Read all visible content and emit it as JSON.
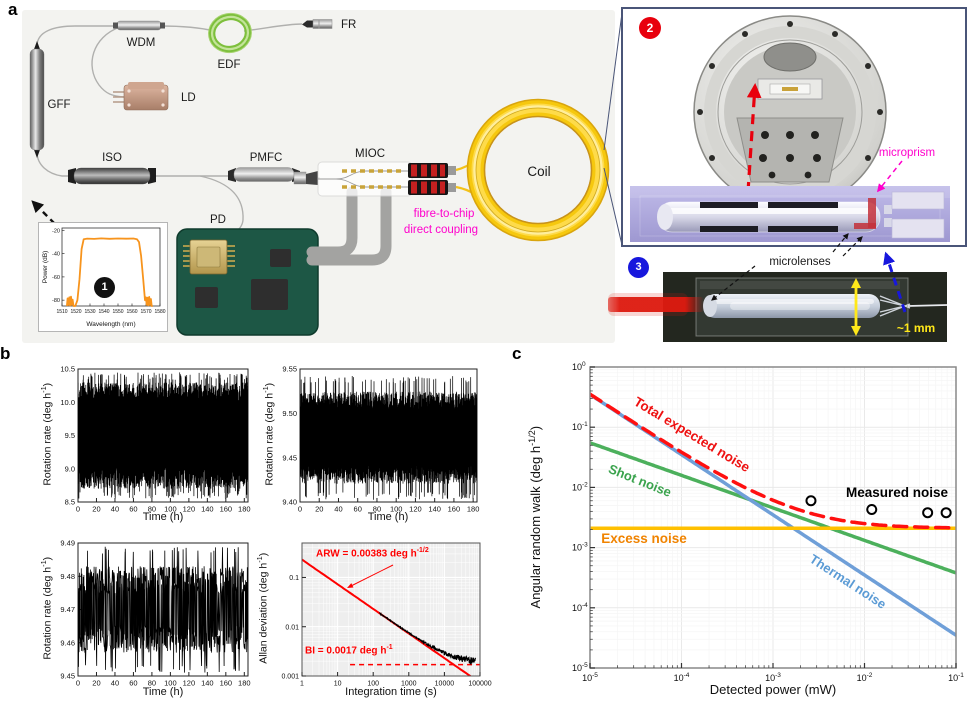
{
  "panel_letters": {
    "a": "a",
    "b": "b",
    "c": "c"
  },
  "schematic": {
    "labels": {
      "gff": "GFF",
      "wdm": "WDM",
      "edf": "EDF",
      "fr": "FR",
      "ld": "LD",
      "iso": "ISO",
      "pmfc": "PMFC",
      "mioc": "MIOC",
      "pd": "PD",
      "coil": "Coil"
    },
    "coupling_note_line1": "fibre-to-chip",
    "coupling_note_line2": "direct coupling",
    "badge1": "1",
    "badge2": "2",
    "badge3": "3",
    "microprism_label": "microprism",
    "microlenses_label": "microlenses",
    "scale_label": "~1 mm",
    "colors": {
      "magenta_note": "#ff00cc",
      "scale_yellow": "#ffe81a",
      "badge1_bg": "#111111",
      "badge2_bg": "#e8000d",
      "badge3_bg": "#1717dd"
    }
  },
  "chart_data": {
    "spectrum": {
      "type": "line",
      "xlabel": "Wavelength (nm)",
      "ylabel": "Power (dB)",
      "xlim": [
        1510,
        1580
      ],
      "ylim": [
        -85,
        -18
      ],
      "xticks": [
        1510,
        1520,
        1530,
        1540,
        1550,
        1560,
        1570,
        1580
      ],
      "yticks": [
        -20,
        -40,
        -60,
        -80
      ],
      "color": "#f7941d",
      "points": [
        [
          1513.5,
          -85
        ],
        [
          1514,
          -78.5
        ],
        [
          1514.6,
          -84
        ],
        [
          1515.2,
          -77.5
        ],
        [
          1515.8,
          -84.5
        ],
        [
          1516.4,
          -77
        ],
        [
          1517,
          -84
        ],
        [
          1517.6,
          -79.5
        ],
        [
          1518.2,
          -85
        ],
        [
          1519.5,
          -85
        ],
        [
          1521,
          -80
        ],
        [
          1522.5,
          -62
        ],
        [
          1524,
          -36
        ],
        [
          1525.5,
          -27.6
        ],
        [
          1528,
          -27.1
        ],
        [
          1533,
          -27.4
        ],
        [
          1538,
          -26.9
        ],
        [
          1544,
          -27.3
        ],
        [
          1550,
          -27
        ],
        [
          1556,
          -27.2
        ],
        [
          1561,
          -27
        ],
        [
          1563.5,
          -27.6
        ],
        [
          1565,
          -30
        ],
        [
          1566.5,
          -42
        ],
        [
          1568,
          -62
        ],
        [
          1569.3,
          -80
        ],
        [
          1569.9,
          -77.5
        ],
        [
          1570.5,
          -84
        ],
        [
          1571.1,
          -77.8
        ],
        [
          1571.7,
          -84.5
        ],
        [
          1572.3,
          -77.2
        ],
        [
          1572.9,
          -84
        ],
        [
          1573.5,
          -79
        ],
        [
          1574.1,
          -85
        ],
        [
          1574.8,
          -85
        ]
      ]
    },
    "rotation_a": {
      "type": "noisy line",
      "xlabel": "Time (h)",
      "ylabel_pre": "Rotation rate (deg h",
      "ylabel_sup": "-1",
      "ylabel_post": ")",
      "xlim": [
        0,
        184
      ],
      "xticks": [
        0,
        20,
        40,
        60,
        80,
        100,
        120,
        140,
        160,
        180
      ],
      "ylim": [
        8.5,
        10.5
      ],
      "yticks": [
        8.5,
        9.0,
        9.5,
        10.0,
        10.5
      ],
      "ydecimals": 1,
      "mean": 9.5,
      "band": 0.8,
      "peak": 0.95,
      "n": 1500,
      "seed": 7,
      "style": "dense"
    },
    "rotation_b": {
      "type": "noisy line",
      "xlabel": "Time (h)",
      "ylabel_pre": "Rotation rate (deg h",
      "ylabel_sup": "-1",
      "ylabel_post": ")",
      "xlim": [
        0,
        184
      ],
      "xticks": [
        0,
        20,
        40,
        60,
        80,
        100,
        120,
        140,
        160,
        180
      ],
      "ylim": [
        9.4,
        9.55
      ],
      "yticks": [
        9.4,
        9.45,
        9.5,
        9.55
      ],
      "ydecimals": 2,
      "mean": 9.4725,
      "band": 0.052,
      "peak": 0.07,
      "n": 1300,
      "seed": 21,
      "style": "dense"
    },
    "rotation_c": {
      "type": "noisy line",
      "xlabel": "Time (h)",
      "ylabel_pre": "Rotation rate (deg h",
      "ylabel_sup": "-1",
      "ylabel_post": ")",
      "xlim": [
        0,
        184
      ],
      "xticks": [
        0,
        20,
        40,
        60,
        80,
        100,
        120,
        140,
        160,
        180
      ],
      "ylim": [
        9.45,
        9.49
      ],
      "yticks": [
        9.45,
        9.46,
        9.47,
        9.48,
        9.49
      ],
      "ydecimals": 2,
      "mean": 9.47,
      "band": 0.013,
      "peak": 0.019,
      "n": 520,
      "seed": 33,
      "style": "sparse"
    },
    "allan": {
      "type": "loglog line",
      "xlabel": "Integration time (s)",
      "ylabel_pre": "Allan deviation (deg h",
      "ylabel_sup": "-1",
      "ylabel_post": ")",
      "xlim": [
        1,
        100000
      ],
      "ylim": [
        0.001,
        0.5
      ],
      "xtick_labels": [
        "1",
        "10",
        "100",
        "1000",
        "10000",
        "100000"
      ],
      "ytick_labels": [
        "0.1",
        "0.01",
        "0.001"
      ],
      "arw_deg_per_sqrt_h": 0.00383,
      "arw_line_coeff": 0.23,
      "bias_instability": 0.0017,
      "ann_arw_pre": "ARW = 0.00383 deg h",
      "ann_arw_sup": "-1/2",
      "ann_bi_pre": "BI = 0.0017 deg h",
      "ann_bi_sup": "-1",
      "line_color": "#ff0000",
      "data_color": "#000000"
    },
    "noise_budget": {
      "type": "loglog multi-line",
      "xlabel": "Detected power (mW)",
      "ylabel_pre": "Angular random walk (deg h",
      "ylabel_sup": "-1/2",
      "ylabel_post": ")",
      "xlim": [
        1e-05,
        0.1
      ],
      "ylim": [
        1e-05,
        1
      ],
      "series": [
        {
          "name": "Thermal noise",
          "color": "#6f9fd8",
          "label_color": "#5b9bd5",
          "style": "solid",
          "endpoints": [
            [
              1e-05,
              0.35
            ],
            [
              0.1,
              3.5e-05
            ]
          ]
        },
        {
          "name": "Shot noise",
          "color": "#4cb05c",
          "label_color": "#3aa34d",
          "style": "solid",
          "endpoints": [
            [
              1e-05,
              0.055
            ],
            [
              0.1,
              0.00038
            ]
          ]
        },
        {
          "name": "Excess noise",
          "color": "#ffc000",
          "label_color": "#f08300",
          "style": "solid",
          "value": 0.0021
        },
        {
          "name": "Total expected noise",
          "color": "#ff1010",
          "label_color": "#ee1111",
          "style": "dashed",
          "definition": "sqrt(thermal^2 + shot^2 + excess^2)"
        },
        {
          "name": "Measured noise",
          "color": "#000000",
          "label_color": "#000000",
          "style": "open circles",
          "points": [
            [
              0.0026,
              0.006
            ],
            [
              0.012,
              0.0043
            ],
            [
              0.049,
              0.0038
            ],
            [
              0.078,
              0.0038
            ]
          ]
        }
      ]
    }
  }
}
